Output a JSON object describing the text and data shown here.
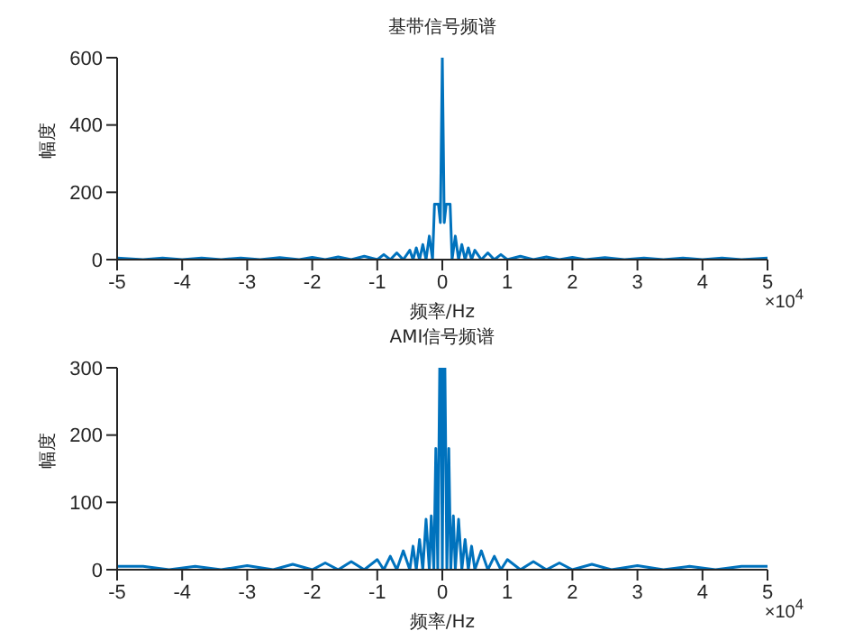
{
  "chart_data": [
    {
      "type": "line",
      "title": "基带信号频谱",
      "xlabel": "频率/Hz",
      "ylabel": "幅度",
      "color": "#0072bd",
      "annotations": [
        "×10$^{4}$"
      ],
      "x": [
        -5,
        -4.6,
        -4.3,
        -4,
        -3.7,
        -3.4,
        -3.1,
        -2.8,
        -2.5,
        -2.2,
        -2,
        -1.8,
        -1.6,
        -1.4,
        -1.2,
        -1,
        -0.9,
        -0.8,
        -0.7,
        -0.6,
        -0.5,
        -0.45,
        -0.4,
        -0.35,
        -0.3,
        -0.25,
        -0.2,
        -0.15,
        -0.12,
        -0.06,
        -0.03,
        0,
        0.03,
        0.06,
        0.12,
        0.15,
        0.2,
        0.25,
        0.3,
        0.35,
        0.4,
        0.45,
        0.5,
        0.6,
        0.7,
        0.8,
        0.9,
        1,
        1.2,
        1.4,
        1.6,
        1.8,
        2,
        2.2,
        2.5,
        2.8,
        3.1,
        3.4,
        3.7,
        4,
        4.3,
        4.6,
        5
      ],
      "values": [
        5,
        0,
        5,
        0,
        5,
        0,
        5,
        0,
        6,
        0,
        7,
        0,
        8,
        0,
        10,
        0,
        15,
        0,
        20,
        0,
        28,
        0,
        35,
        0,
        45,
        0,
        70,
        0,
        165,
        165,
        110,
        600,
        110,
        165,
        165,
        0,
        70,
        0,
        45,
        0,
        35,
        0,
        28,
        0,
        20,
        0,
        15,
        0,
        10,
        0,
        8,
        0,
        7,
        0,
        6,
        0,
        5,
        0,
        5,
        0,
        5,
        0,
        5
      ],
      "xlim": [
        -5,
        5
      ],
      "xticks": [
        -5,
        -4,
        -3,
        -2,
        -1,
        0,
        1,
        2,
        3,
        4,
        5
      ],
      "ylim": [
        0,
        600
      ],
      "yticks": [
        0,
        200,
        400,
        600
      ]
    },
    {
      "type": "line",
      "title": "AMI信号频谱",
      "xlabel": "频率/Hz",
      "ylabel": "幅度",
      "color": "#0072bd",
      "annotations": [
        "×10$^{4}$"
      ],
      "x": [
        -5,
        -4.6,
        -4.2,
        -3.8,
        -3.4,
        -3,
        -2.6,
        -2.3,
        -2,
        -1.8,
        -1.6,
        -1.4,
        -1.2,
        -1,
        -0.9,
        -0.8,
        -0.7,
        -0.6,
        -0.5,
        -0.45,
        -0.4,
        -0.35,
        -0.3,
        -0.25,
        -0.2,
        -0.17,
        -0.13,
        -0.1,
        -0.07,
        -0.04,
        -0.02,
        0,
        0.02,
        0.04,
        0.07,
        0.1,
        0.13,
        0.17,
        0.2,
        0.25,
        0.3,
        0.35,
        0.4,
        0.45,
        0.5,
        0.6,
        0.7,
        0.8,
        0.9,
        1,
        1.2,
        1.4,
        1.6,
        1.8,
        2,
        2.3,
        2.6,
        3,
        3.4,
        3.8,
        4.2,
        4.6,
        5
      ],
      "values": [
        5,
        5,
        0,
        5,
        0,
        6,
        0,
        8,
        0,
        10,
        0,
        12,
        0,
        15,
        0,
        20,
        0,
        28,
        0,
        35,
        0,
        45,
        0,
        75,
        0,
        80,
        0,
        180,
        0,
        300,
        300,
        0,
        300,
        300,
        0,
        180,
        0,
        80,
        0,
        75,
        0,
        45,
        0,
        35,
        0,
        28,
        0,
        20,
        0,
        15,
        0,
        12,
        0,
        10,
        0,
        8,
        0,
        6,
        0,
        5,
        0,
        5,
        5
      ],
      "xlim": [
        -5,
        5
      ],
      "xticks": [
        -5,
        -4,
        -3,
        -2,
        -1,
        0,
        1,
        2,
        3,
        4,
        5
      ],
      "ylim": [
        0,
        300
      ],
      "yticks": [
        0,
        100,
        200,
        300
      ]
    }
  ]
}
